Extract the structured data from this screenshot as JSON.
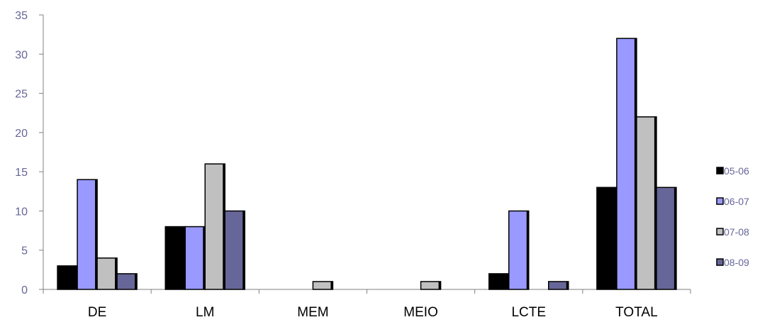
{
  "chart_data": {
    "type": "bar",
    "title": "",
    "xlabel": "",
    "ylabel": "",
    "categories": [
      "DE",
      "LM",
      "MEM",
      "MEIO",
      "LCTE",
      "TOTAL"
    ],
    "series": [
      {
        "name": "05-06",
        "color": "#000000",
        "values": [
          3,
          8,
          0,
          0,
          2,
          13
        ]
      },
      {
        "name": "06-07",
        "color": "#9999FF",
        "values": [
          14,
          8,
          0,
          0,
          10,
          32
        ]
      },
      {
        "name": "07-08",
        "color": "#C0C0C0",
        "values": [
          4,
          16,
          1,
          1,
          0,
          22
        ]
      },
      {
        "name": "08-09",
        "color": "#666699",
        "values": [
          2,
          10,
          0,
          0,
          1,
          13
        ]
      }
    ],
    "ylim": [
      0,
      35
    ],
    "yticks": [
      0,
      5,
      10,
      15,
      20,
      25,
      30,
      35
    ],
    "grid": false,
    "legend_position": "right"
  }
}
